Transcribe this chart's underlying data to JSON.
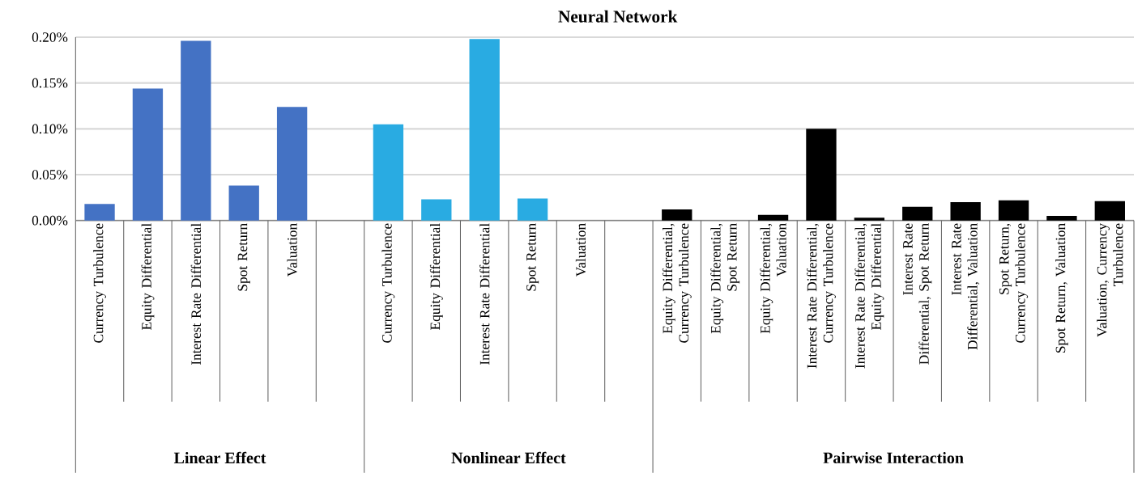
{
  "chart_data": {
    "type": "bar",
    "title": "Neural Network",
    "categories": [
      "Currency Turbulence",
      "Equity Differential",
      "Interest Rate Differential",
      "Spot Return",
      "Valuation",
      null,
      "Currency Turbulence",
      "Equity Differential",
      "Interest Rate Differential",
      "Spot Return",
      "Valuation",
      null,
      "Equity Differential, Currency Turbulence",
      "Equity Differential, Spot Return",
      "Equity Differential, Valuation",
      "Interest Rate Differential, Currency Turbulence",
      "Interest Rate Differential, Equity Differential",
      "Interest Rate Differential, Spot Return",
      "Interest Rate Differential, Valuation",
      "Spot Return, Currency Turbulence",
      "Spot Return, Valuation",
      "Valuation, Currency Turbulence"
    ],
    "values": [
      0.018,
      0.144,
      0.196,
      0.038,
      0.124,
      null,
      0.105,
      0.023,
      0.198,
      0.024,
      0,
      null,
      0.012,
      0,
      0.006,
      0.1,
      0.003,
      0.015,
      0.02,
      0.022,
      0.005,
      0.021
    ],
    "colors": [
      "#4472c4",
      "#4472c4",
      "#4472c4",
      "#4472c4",
      "#4472c4",
      null,
      "#29abe2",
      "#29abe2",
      "#29abe2",
      "#29abe2",
      "#29abe2",
      null,
      "#000000",
      "#000000",
      "#000000",
      "#000000",
      "#000000",
      "#000000",
      "#000000",
      "#000000",
      "#000000",
      "#000000"
    ],
    "ylim": [
      0,
      0.2
    ],
    "yticks": [
      {
        "value": 0,
        "label": "0.00%"
      },
      {
        "value": 0.05,
        "label": "0.05%"
      },
      {
        "value": 0.1,
        "label": "0.10%"
      },
      {
        "value": 0.15,
        "label": "0.15%"
      },
      {
        "value": 0.2,
        "label": "0.20%"
      }
    ],
    "grid": "y",
    "annotations": [
      "Linear Effect",
      "Nonlinear Effect",
      "Pairwise Interaction"
    ]
  }
}
